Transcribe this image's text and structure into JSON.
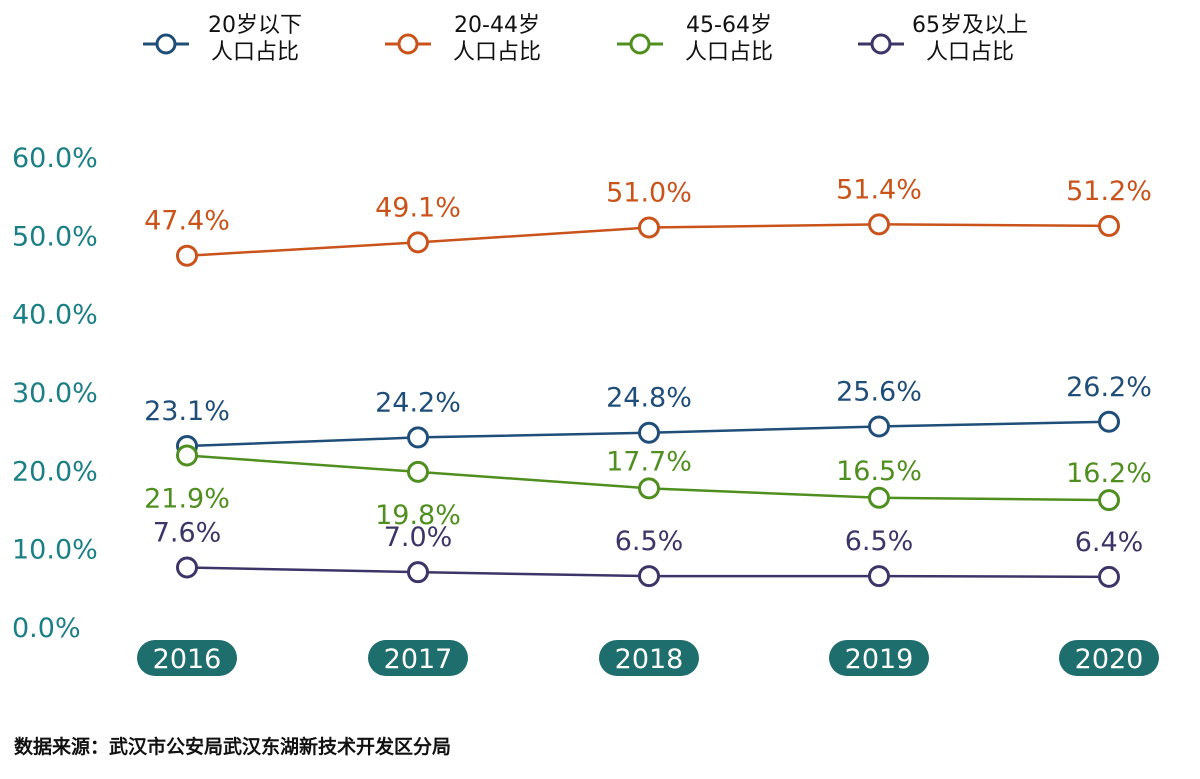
{
  "chart_data": {
    "type": "line",
    "categories": [
      "2016",
      "2017",
      "2018",
      "2019",
      "2020"
    ],
    "ylim": [
      0,
      60
    ],
    "yticks": [
      "0.0%",
      "10.0%",
      "20.0%",
      "30.0%",
      "40.0%",
      "50.0%",
      "60.0%"
    ],
    "series": [
      {
        "name_lines": [
          "20岁以下",
          "人口占比"
        ],
        "color": "#1f4e79",
        "values": [
          23.1,
          24.2,
          24.8,
          25.6,
          26.2
        ],
        "labels": [
          "23.1%",
          "24.2%",
          "24.8%",
          "25.6%",
          "26.2%"
        ],
        "label_position": "above"
      },
      {
        "name_lines": [
          "20-44岁",
          "人口占比"
        ],
        "color": "#c9531a",
        "values": [
          47.4,
          49.1,
          51.0,
          51.4,
          51.2
        ],
        "labels": [
          "47.4%",
          "49.1%",
          "51.0%",
          "51.4%",
          "51.2%"
        ],
        "label_position": "above"
      },
      {
        "name_lines": [
          "45-64岁",
          "人口占比"
        ],
        "color": "#4f8f1f",
        "values": [
          21.9,
          19.8,
          17.7,
          16.5,
          16.2
        ],
        "labels": [
          "21.9%",
          "19.8%",
          "17.7%",
          "16.5%",
          "16.2%"
        ],
        "label_position": "mixed"
      },
      {
        "name_lines": [
          "65岁及以上",
          "人口占比"
        ],
        "color": "#3c3568",
        "values": [
          7.6,
          7.0,
          6.5,
          6.5,
          6.4
        ],
        "labels": [
          "7.6%",
          "7.0%",
          "6.5%",
          "6.5%",
          "6.4%"
        ],
        "label_position": "above"
      }
    ],
    "legend_position": "top",
    "grid": false,
    "xtick_badge_color": "#1e6e6e"
  },
  "footer": {
    "source": "数据来源：武汉市公安局武汉东湖新技术开发区分局"
  }
}
